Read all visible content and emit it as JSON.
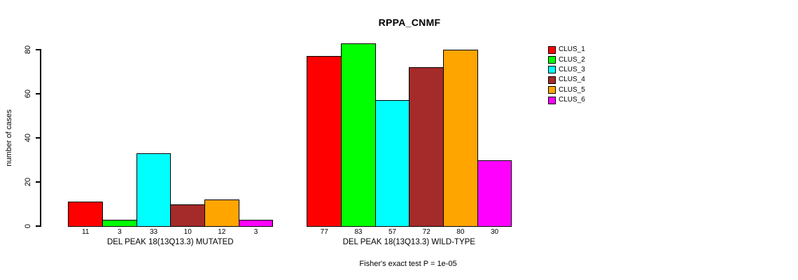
{
  "chart_data": {
    "type": "bar",
    "title": "RPPA_CNMF",
    "ylabel": "number of cases",
    "ylim": [
      0,
      80
    ],
    "yticks": [
      0,
      20,
      40,
      60,
      80
    ],
    "grid": false,
    "legend_position": "right",
    "categories": [
      "DEL PEAK 18(13Q13.3) MUTATED",
      "DEL PEAK 18(13Q13.3) WILD-TYPE"
    ],
    "series": [
      {
        "name": "CLUS_1",
        "color": "#ff0000",
        "values": [
          11,
          77
        ]
      },
      {
        "name": "CLUS_2",
        "color": "#00ff00",
        "values": [
          3,
          83
        ]
      },
      {
        "name": "CLUS_3",
        "color": "#00ffff",
        "values": [
          33,
          57
        ]
      },
      {
        "name": "CLUS_4",
        "color": "#a52a2a",
        "values": [
          10,
          72
        ]
      },
      {
        "name": "CLUS_5",
        "color": "#ffa500",
        "values": [
          12,
          80
        ]
      },
      {
        "name": "CLUS_6",
        "color": "#ff00ff",
        "values": [
          3,
          30
        ]
      }
    ],
    "bar_value_labels": [
      [
        11,
        3,
        33,
        10,
        12,
        3
      ],
      [
        77,
        83,
        57,
        72,
        80,
        30
      ]
    ],
    "annotation": "Fisher's exact test P = 1e-05"
  },
  "colors": {
    "background": "#ffffff",
    "axis": "#000000",
    "text": "#000000"
  }
}
